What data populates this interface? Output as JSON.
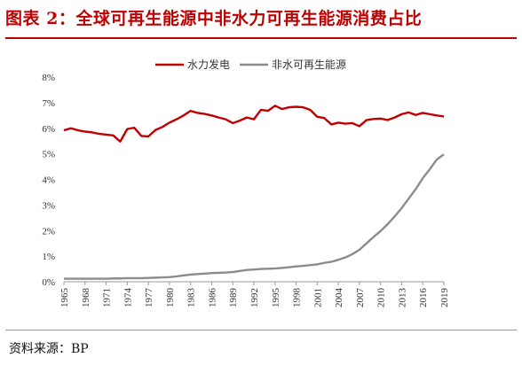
{
  "figure": {
    "title": "图表 2：全球可再生能源中非水力可再生能源消费占比",
    "source": "资料来源：BP"
  },
  "colors": {
    "hydro": "#c00000",
    "non_hydro": "#8c8c8c",
    "title": "#c00000"
  },
  "chart_data": {
    "type": "line",
    "title": "",
    "xlabel": "",
    "ylabel": "",
    "ylim": [
      0,
      8
    ],
    "xlim": [
      1965,
      2019
    ],
    "yticks": [
      "0%",
      "1%",
      "2%",
      "3%",
      "4%",
      "5%",
      "6%",
      "7%",
      "8%"
    ],
    "xticks": [
      "1965",
      "1968",
      "1971",
      "1974",
      "1977",
      "1980",
      "1983",
      "1986",
      "1989",
      "1992",
      "1995",
      "1998",
      "2001",
      "2004",
      "2007",
      "2010",
      "2013",
      "2016",
      "2019"
    ],
    "grid": false,
    "legend": "top",
    "x": [
      1965,
      1966,
      1967,
      1968,
      1969,
      1970,
      1971,
      1972,
      1973,
      1974,
      1975,
      1976,
      1977,
      1978,
      1979,
      1980,
      1981,
      1982,
      1983,
      1984,
      1985,
      1986,
      1987,
      1988,
      1989,
      1990,
      1991,
      1992,
      1993,
      1994,
      1995,
      1996,
      1997,
      1998,
      1999,
      2000,
      2001,
      2002,
      2003,
      2004,
      2005,
      2006,
      2007,
      2008,
      2009,
      2010,
      2011,
      2012,
      2013,
      2014,
      2015,
      2016,
      2017,
      2018,
      2019
    ],
    "series": [
      {
        "name": "水力发电",
        "color": "#c00000",
        "values": [
          5.92,
          6.0,
          5.92,
          5.87,
          5.84,
          5.78,
          5.75,
          5.72,
          5.48,
          5.97,
          6.02,
          5.7,
          5.68,
          5.93,
          6.05,
          6.22,
          6.35,
          6.5,
          6.68,
          6.6,
          6.56,
          6.5,
          6.42,
          6.35,
          6.2,
          6.3,
          6.42,
          6.35,
          6.72,
          6.68,
          6.88,
          6.75,
          6.82,
          6.84,
          6.82,
          6.72,
          6.45,
          6.4,
          6.15,
          6.22,
          6.18,
          6.2,
          6.08,
          6.32,
          6.36,
          6.38,
          6.32,
          6.42,
          6.55,
          6.62,
          6.52,
          6.6,
          6.55,
          6.5,
          6.46
        ]
      },
      {
        "name": "非水可再生能源",
        "color": "#8c8c8c",
        "values": [
          0.12,
          0.12,
          0.12,
          0.12,
          0.12,
          0.12,
          0.12,
          0.13,
          0.13,
          0.14,
          0.14,
          0.14,
          0.15,
          0.16,
          0.17,
          0.18,
          0.21,
          0.25,
          0.28,
          0.3,
          0.32,
          0.34,
          0.35,
          0.36,
          0.38,
          0.42,
          0.46,
          0.48,
          0.5,
          0.51,
          0.52,
          0.54,
          0.57,
          0.6,
          0.62,
          0.65,
          0.68,
          0.74,
          0.78,
          0.86,
          0.95,
          1.08,
          1.25,
          1.5,
          1.75,
          1.98,
          2.25,
          2.55,
          2.88,
          3.25,
          3.62,
          4.05,
          4.4,
          4.78,
          4.98
        ]
      }
    ]
  }
}
